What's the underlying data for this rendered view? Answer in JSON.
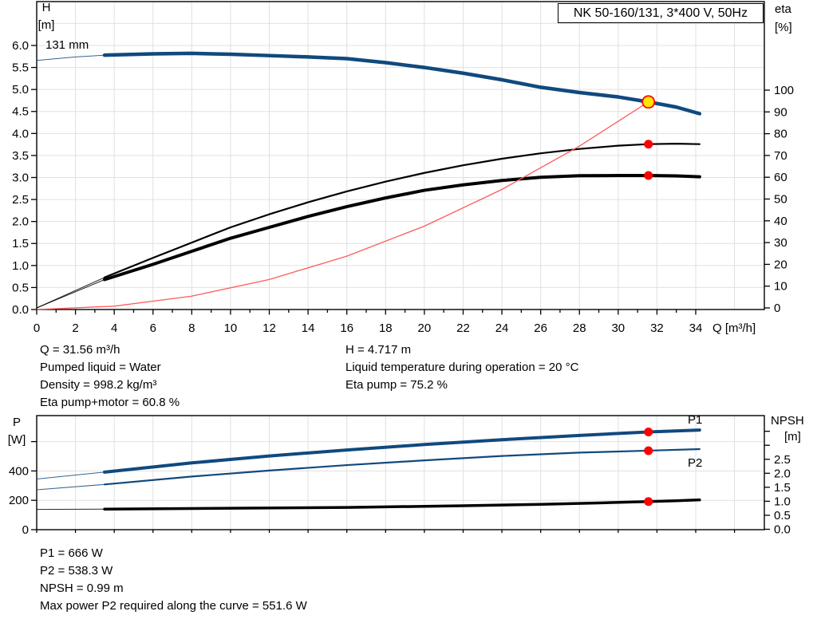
{
  "title_box": {
    "text": "NK 50-160/131, 3*400 V, 50Hz"
  },
  "colors": {
    "curve_blue": "#10497E",
    "red": "#FF0000",
    "system_red": "#FF5A5A",
    "yellow": "#FFE500",
    "black": "#000000",
    "grid": "#E0E0E0",
    "frame": "#000000"
  },
  "info_top_left": [
    "Q = 31.56 m³/h",
    "Pumped liquid = Water",
    "Density = 998.2 kg/m³",
    "Eta pump+motor = 60.8 %"
  ],
  "info_top_right": [
    "H = 4.717 m",
    "Liquid temperature during operation = 20 °C",
    "Eta pump = 75.2 %"
  ],
  "info_bottom": [
    "P1 = 666 W",
    "P2 = 538.3 W",
    "NPSH = 0.99 m",
    "Max power P2 required along the curve = 551.6 W"
  ],
  "chart_data": [
    {
      "type": "line",
      "title": "NK 50-160/131, 3*400 V, 50Hz",
      "curve_label": "131 mm",
      "x_axis": {
        "label": "Q [m³/h]",
        "min": 0,
        "max": 34,
        "ticks": [
          0,
          2,
          4,
          6,
          8,
          10,
          12,
          14,
          16,
          18,
          20,
          22,
          24,
          26,
          28,
          30,
          32,
          34
        ],
        "decimals": 0,
        "grid_step": 2,
        "grid_max": 36
      },
      "y_left": {
        "title_lines": [
          "H",
          "[m]"
        ],
        "min": 0,
        "max": 7,
        "ticks": [
          0,
          0.5,
          1,
          1.5,
          2,
          2.5,
          3,
          3.5,
          4,
          4.5,
          5,
          5.5,
          6
        ],
        "decimals": 1
      },
      "y_right": {
        "title_lines": [
          "eta",
          "[%]"
        ],
        "min": 0,
        "max": 100,
        "ticks": [
          0,
          10,
          20,
          30,
          40,
          50,
          60,
          70,
          80,
          90,
          100
        ],
        "unlabeled_ticks": [],
        "decimals": 0
      },
      "series": [
        {
          "name": "H curve 131 mm",
          "axis": "left",
          "color": "#10497E",
          "solid_from": 3.5,
          "width": 4.5,
          "x": [
            0,
            2,
            3.5,
            6,
            8,
            10,
            12,
            14,
            16,
            18,
            20,
            22,
            24,
            26,
            28,
            30,
            31.56,
            33,
            34.2
          ],
          "y": [
            5.66,
            5.74,
            5.78,
            5.81,
            5.82,
            5.8,
            5.77,
            5.74,
            5.7,
            5.61,
            5.5,
            5.37,
            5.22,
            5.05,
            4.93,
            4.83,
            4.717,
            4.6,
            4.45
          ]
        },
        {
          "name": "Eta pump",
          "axis": "right",
          "color": "#000000",
          "solid_from": 3.5,
          "width": 2.2,
          "x": [
            0,
            3.5,
            6,
            8,
            10,
            12,
            14,
            16,
            18,
            20,
            22,
            24,
            26,
            28,
            30,
            31.56,
            33,
            34.2
          ],
          "y": [
            0,
            14,
            23,
            30,
            37,
            43,
            48.5,
            53.5,
            58,
            62,
            65.5,
            68.5,
            71,
            73,
            74.5,
            75.2,
            75.4,
            75.2
          ]
        },
        {
          "name": "Eta pump+motor",
          "axis": "right",
          "color": "#000000",
          "solid_from": 3.5,
          "width": 4,
          "x": [
            0,
            3.5,
            6,
            8,
            10,
            12,
            14,
            16,
            18,
            20,
            22,
            24,
            26,
            28,
            30,
            31.56,
            33,
            34.2
          ],
          "y": [
            0,
            13,
            20,
            26,
            32,
            37,
            42,
            46.5,
            50.5,
            54,
            56.5,
            58.5,
            60,
            60.7,
            60.8,
            60.8,
            60.6,
            60.2
          ]
        },
        {
          "name": "System curve",
          "axis": "left",
          "color": "#FF5A5A",
          "solid_from": null,
          "width": 1.3,
          "x": [
            0,
            4,
            8,
            12,
            16,
            20,
            24,
            28,
            31.56
          ],
          "y": [
            0,
            0.076,
            0.303,
            0.682,
            1.213,
            1.894,
            2.728,
            3.713,
            4.717
          ]
        }
      ],
      "points": [
        {
          "name": "duty-point",
          "axis": "left",
          "x": 31.56,
          "y": 4.717,
          "style": "yellow"
        },
        {
          "name": "eta-pump-point",
          "axis": "right",
          "x": 31.56,
          "y": 75.2,
          "style": "red"
        },
        {
          "name": "eta-pump-motor-point",
          "axis": "right",
          "x": 31.56,
          "y": 60.8,
          "style": "red"
        }
      ]
    },
    {
      "type": "line",
      "x_axis": {
        "label": "",
        "min": 0,
        "max": 34,
        "ticks": [],
        "grid_step": 2,
        "grid_max": 36
      },
      "y_left": {
        "title_lines": [
          "P",
          "[W]"
        ],
        "min": 0,
        "max": 766,
        "ticks": [
          0,
          200,
          400
        ],
        "unlabeled_ticks": [
          600
        ],
        "decimals": 0,
        "grid_values": [
          200,
          400,
          600
        ]
      },
      "y_right": {
        "title_lines": [
          "NPSH",
          "[m]"
        ],
        "min": 0,
        "max": 4,
        "ticks": [
          0,
          0.5,
          1,
          1.5,
          2,
          2.5
        ],
        "unlabeled_ticks": [
          3,
          3.5
        ],
        "decimals": 1
      },
      "series": [
        {
          "name": "P1",
          "label": "P1",
          "axis": "left",
          "color": "#10497E",
          "solid_from": 3.5,
          "width": 4,
          "x": [
            0,
            3.5,
            8,
            12,
            16,
            20,
            24,
            28,
            31.56,
            34.2
          ],
          "y": [
            345,
            392,
            455,
            502,
            543,
            580,
            613,
            642,
            666,
            679
          ]
        },
        {
          "name": "P2",
          "label": "P2",
          "axis": "left",
          "color": "#10497E",
          "solid_from": 3.5,
          "width": 2.2,
          "x": [
            0,
            3.5,
            8,
            12,
            16,
            20,
            24,
            28,
            31.56,
            34.2
          ],
          "y": [
            272,
            308,
            362,
            403,
            440,
            472,
            502,
            525,
            538.3,
            549
          ]
        },
        {
          "name": "NPSH",
          "axis": "right",
          "color": "#000000",
          "solid_from": 3.5,
          "width": 3.5,
          "x": [
            0,
            3.5,
            10,
            16,
            22,
            26,
            29,
            31.56,
            33,
            34.2
          ],
          "y": [
            0.71,
            0.72,
            0.75,
            0.78,
            0.84,
            0.89,
            0.94,
            0.99,
            1.02,
            1.05
          ]
        }
      ],
      "points": [
        {
          "name": "p1-point",
          "axis": "left",
          "x": 31.56,
          "y": 666,
          "style": "red"
        },
        {
          "name": "p2-point",
          "axis": "left",
          "x": 31.56,
          "y": 538.3,
          "style": "red"
        },
        {
          "name": "npsh-point",
          "axis": "right",
          "x": 31.56,
          "y": 0.99,
          "style": "red"
        }
      ]
    }
  ]
}
